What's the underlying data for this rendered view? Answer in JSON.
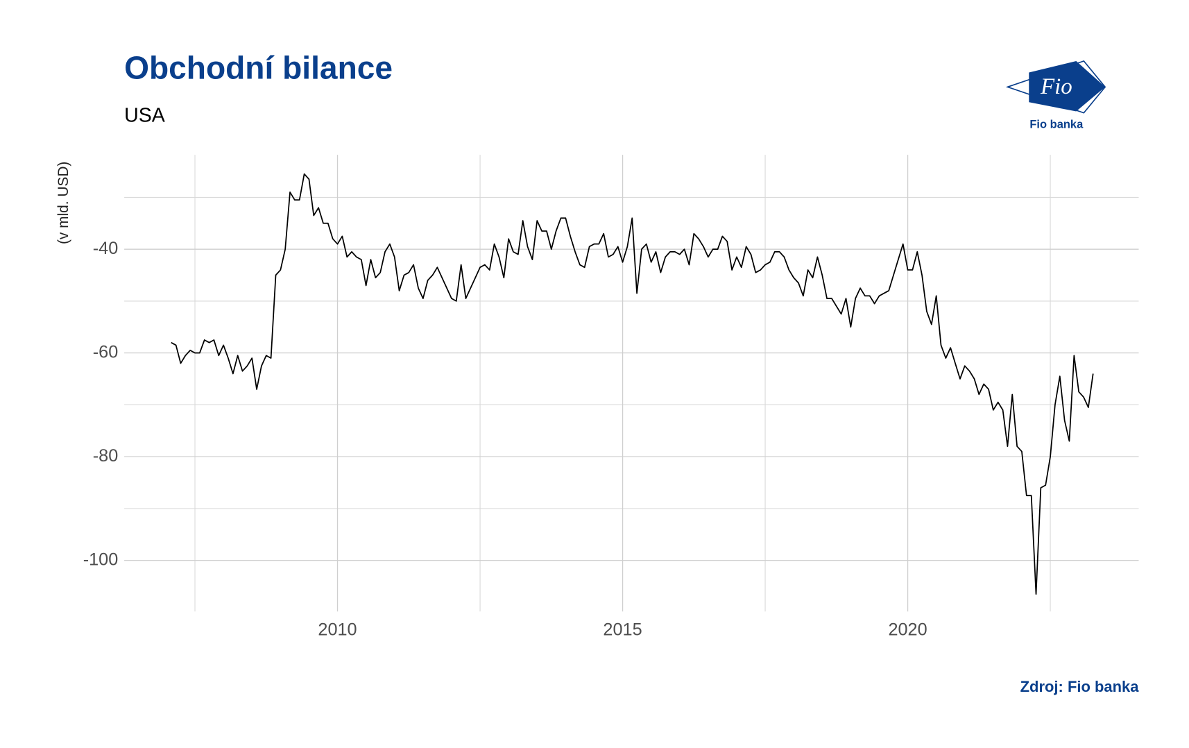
{
  "chart_data": {
    "type": "line",
    "title": "Obchodní bilance",
    "subtitle": "USA",
    "y_label": "(v mld. USD)",
    "source": "Zdroj: Fio banka",
    "logo_text": "Fio",
    "logo_caption": "Fio banka",
    "xlim": [
      2006.26,
      2024.05
    ],
    "ylim": [
      -109.85,
      -21.8
    ],
    "xticks": [
      2010,
      2015,
      2020
    ],
    "yticks": [
      -40,
      -60,
      -80,
      -100
    ],
    "x_minor_ticks": [
      2007.5,
      2012.5,
      2017.5,
      2022.5
    ],
    "y_minor_ticks": [
      -30,
      -50,
      -70,
      -90
    ],
    "grid": true,
    "x": [
      2007.083,
      2007.167,
      2007.25,
      2007.333,
      2007.417,
      2007.5,
      2007.583,
      2007.667,
      2007.75,
      2007.833,
      2007.917,
      2008.0,
      2008.083,
      2008.167,
      2008.25,
      2008.333,
      2008.417,
      2008.5,
      2008.583,
      2008.667,
      2008.75,
      2008.833,
      2008.917,
      2009.0,
      2009.083,
      2009.167,
      2009.25,
      2009.333,
      2009.417,
      2009.5,
      2009.583,
      2009.667,
      2009.75,
      2009.833,
      2009.917,
      2010.0,
      2010.083,
      2010.167,
      2010.25,
      2010.333,
      2010.417,
      2010.5,
      2010.583,
      2010.667,
      2010.75,
      2010.833,
      2010.917,
      2011.0,
      2011.083,
      2011.167,
      2011.25,
      2011.333,
      2011.417,
      2011.5,
      2011.583,
      2011.667,
      2011.75,
      2011.833,
      2011.917,
      2012.0,
      2012.083,
      2012.167,
      2012.25,
      2012.333,
      2012.417,
      2012.5,
      2012.583,
      2012.667,
      2012.75,
      2012.833,
      2012.917,
      2013.0,
      2013.083,
      2013.167,
      2013.25,
      2013.333,
      2013.417,
      2013.5,
      2013.583,
      2013.667,
      2013.75,
      2013.833,
      2013.917,
      2014.0,
      2014.083,
      2014.167,
      2014.25,
      2014.333,
      2014.417,
      2014.5,
      2014.583,
      2014.667,
      2014.75,
      2014.833,
      2014.917,
      2015.0,
      2015.083,
      2015.167,
      2015.25,
      2015.333,
      2015.417,
      2015.5,
      2015.583,
      2015.667,
      2015.75,
      2015.833,
      2015.917,
      2016.0,
      2016.083,
      2016.167,
      2016.25,
      2016.333,
      2016.417,
      2016.5,
      2016.583,
      2016.667,
      2016.75,
      2016.833,
      2016.917,
      2017.0,
      2017.083,
      2017.167,
      2017.25,
      2017.333,
      2017.417,
      2017.5,
      2017.583,
      2017.667,
      2017.75,
      2017.833,
      2017.917,
      2018.0,
      2018.083,
      2018.167,
      2018.25,
      2018.333,
      2018.417,
      2018.5,
      2018.583,
      2018.667,
      2018.75,
      2018.833,
      2018.917,
      2019.0,
      2019.083,
      2019.167,
      2019.25,
      2019.333,
      2019.417,
      2019.5,
      2019.583,
      2019.667,
      2019.75,
      2019.833,
      2019.917,
      2020.0,
      2020.083,
      2020.167,
      2020.25,
      2020.333,
      2020.417,
      2020.5,
      2020.583,
      2020.667,
      2020.75,
      2020.833,
      2020.917,
      2021.0,
      2021.083,
      2021.167,
      2021.25,
      2021.333,
      2021.417,
      2021.5,
      2021.583,
      2021.667,
      2021.75,
      2021.833,
      2021.917,
      2022.0,
      2022.083,
      2022.167,
      2022.25,
      2022.333,
      2022.417,
      2022.5,
      2022.583,
      2022.667,
      2022.75,
      2022.833,
      2022.917,
      2023.0,
      2023.083,
      2023.167,
      2023.25
    ],
    "series": [
      {
        "color": "#000000",
        "values": [
          -58,
          -58.5,
          -62,
          -60.5,
          -59.5,
          -60,
          -60,
          -57.5,
          -58,
          -57.5,
          -60.5,
          -58.5,
          -61,
          -64,
          -60.5,
          -63.5,
          -62.5,
          -61,
          -67,
          -62.5,
          -60.5,
          -61,
          -45,
          -44,
          -40,
          -29,
          -30.5,
          -30.5,
          -25.5,
          -26.5,
          -33.5,
          -32,
          -35,
          -35,
          -38,
          -39,
          -37.5,
          -41.5,
          -40.5,
          -41.5,
          -42,
          -47,
          -42,
          -45.5,
          -44.5,
          -40.5,
          -39,
          -41.5,
          -48,
          -45,
          -44.5,
          -43,
          -47.5,
          -49.5,
          -46,
          -45,
          -43.5,
          -45.5,
          -47.5,
          -49.5,
          -50,
          -43,
          -49.5,
          -47.5,
          -45.5,
          -43.5,
          -43,
          -44,
          -39,
          -41.5,
          -45.5,
          -38,
          -40.5,
          -41,
          -34.5,
          -39.5,
          -42,
          -34.5,
          -36.5,
          -36.5,
          -40,
          -36.5,
          -34,
          -34,
          -37.5,
          -40.5,
          -43,
          -43.5,
          -39.5,
          -39,
          -39,
          -37,
          -41.5,
          -41,
          -39.5,
          -42.5,
          -39.5,
          -34,
          -48.5,
          -40,
          -39,
          -42.5,
          -40.5,
          -44.5,
          -41.5,
          -40.5,
          -40.5,
          -41,
          -40,
          -43,
          -37,
          -38,
          -39.5,
          -41.5,
          -40,
          -40,
          -37.5,
          -38.5,
          -44,
          -41.5,
          -43.5,
          -39.5,
          -41,
          -44.5,
          -44,
          -43,
          -42.5,
          -40.5,
          -40.5,
          -41.5,
          -44,
          -45.5,
          -46.5,
          -49,
          -44,
          -45.5,
          -41.5,
          -45,
          -49.5,
          -49.5,
          -51,
          -52.5,
          -49.5,
          -55,
          -49.5,
          -47.5,
          -49,
          -49,
          -50.5,
          -49,
          -48.5,
          -48,
          -45,
          -42,
          -39,
          -44,
          -44,
          -40.5,
          -45,
          -52,
          -54.5,
          -49,
          -58.5,
          -61,
          -59,
          -62,
          -65,
          -62.5,
          -63.5,
          -65,
          -68,
          -66,
          -67,
          -71,
          -69.5,
          -71,
          -78,
          -68,
          -78,
          -79,
          -87.5,
          -87.5,
          -106.5,
          -86,
          -85.5,
          -80,
          -70,
          -64.5,
          -73,
          -77,
          -60.5,
          -67.5,
          -68.5,
          -70.5,
          -64
        ]
      }
    ]
  }
}
